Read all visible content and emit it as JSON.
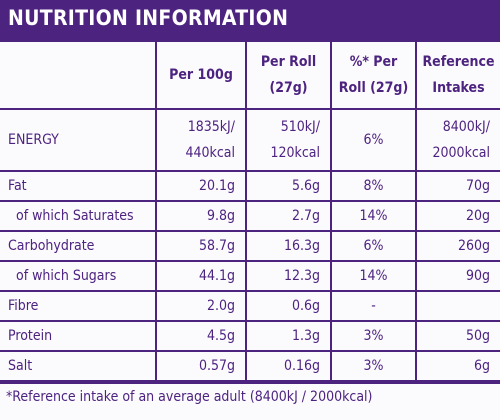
{
  "title": "NUTRITION INFORMATION",
  "table": {
    "header": [
      [
        "Per 100g"
      ],
      [
        "Per Roll",
        "(27g)"
      ],
      [
        "%* Per",
        "Roll (27g)"
      ],
      [
        "Reference",
        "Intakes"
      ]
    ],
    "rows": [
      [
        [
          "ENERGY"
        ],
        [
          "1835kJ/",
          "440kcal"
        ],
        [
          "510kJ/",
          "120kcal"
        ],
        [
          "6%"
        ],
        [
          "8400kJ/",
          "2000kcal"
        ]
      ],
      [
        [
          "Fat"
        ],
        [
          "20.1g"
        ],
        [
          "5.6g"
        ],
        [
          "8%"
        ],
        [
          "70g"
        ]
      ],
      [
        [
          "of which Saturates"
        ],
        [
          "9.8g"
        ],
        [
          "2.7g"
        ],
        [
          "14%"
        ],
        [
          "20g"
        ]
      ],
      [
        [
          "Carbohydrate"
        ],
        [
          "58.7g"
        ],
        [
          "16.3g"
        ],
        [
          "6%"
        ],
        [
          "260g"
        ]
      ],
      [
        [
          "of which Sugars"
        ],
        [
          "44.1g"
        ],
        [
          "12.3g"
        ],
        [
          "14%"
        ],
        [
          "90g"
        ]
      ],
      [
        [
          "Fibre"
        ],
        [
          "2.0g"
        ],
        [
          "0.6g"
        ],
        [
          "-"
        ],
        []
      ],
      [
        [
          "Protein"
        ],
        [
          "4.5g"
        ],
        [
          "1.3g"
        ],
        [
          "3%"
        ],
        [
          "50g"
        ]
      ],
      [
        [
          "Salt"
        ],
        [
          "0.57g"
        ],
        [
          "0.16g"
        ],
        [
          "3%"
        ],
        [
          "6g"
        ]
      ]
    ]
  },
  "footnote": "*Reference intake of an average adult (8400kJ / 2000kcal)"
}
